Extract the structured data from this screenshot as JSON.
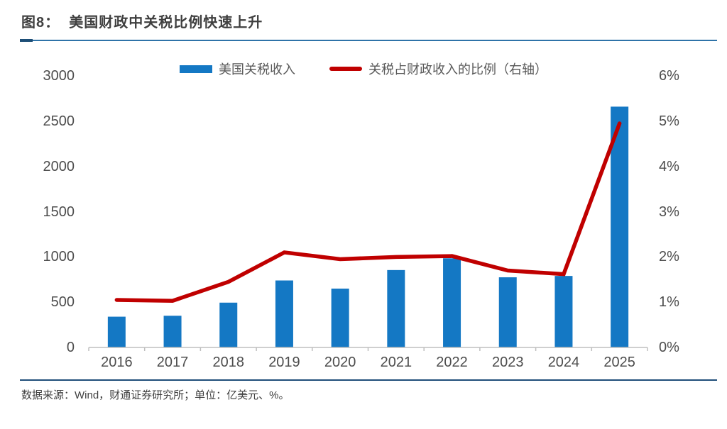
{
  "header": {
    "title": "图8：  美国财政中关税比例快速上升"
  },
  "footer": {
    "source": "数据来源：Wind，财通证券研究所；单位：亿美元、%。"
  },
  "chart_data": {
    "type": "bar+line-combo",
    "title": "美国财政中关税比例快速上升",
    "categories": [
      "2016",
      "2017",
      "2018",
      "2019",
      "2020",
      "2021",
      "2022",
      "2023",
      "2024",
      "2025"
    ],
    "series": [
      {
        "name": "美国关税收入",
        "type": "bar",
        "axis": "left",
        "color": "#1478c4",
        "values": [
          340,
          350,
          495,
          740,
          650,
          855,
          985,
          775,
          790,
          2660
        ]
      },
      {
        "name": "关税占财政收入的比例（右轴）",
        "type": "line",
        "axis": "right",
        "color": "#c00000",
        "values": [
          1.05,
          1.03,
          1.45,
          2.1,
          1.95,
          2.0,
          2.02,
          1.7,
          1.62,
          4.95
        ]
      }
    ],
    "left_axis": {
      "min": 0,
      "max": 3000,
      "ticks": [
        0,
        500,
        1000,
        1500,
        2000,
        2500,
        3000
      ],
      "unit": "亿美元"
    },
    "right_axis": {
      "min": 0,
      "max": 6,
      "tick_labels": [
        "0%",
        "1%",
        "2%",
        "3%",
        "4%",
        "5%",
        "6%"
      ],
      "unit": "%"
    },
    "grid": "off",
    "legend_position": "top-center",
    "colors": {
      "axis_line": "#bfbfbf",
      "axis_text": "#4d4d4d"
    }
  }
}
